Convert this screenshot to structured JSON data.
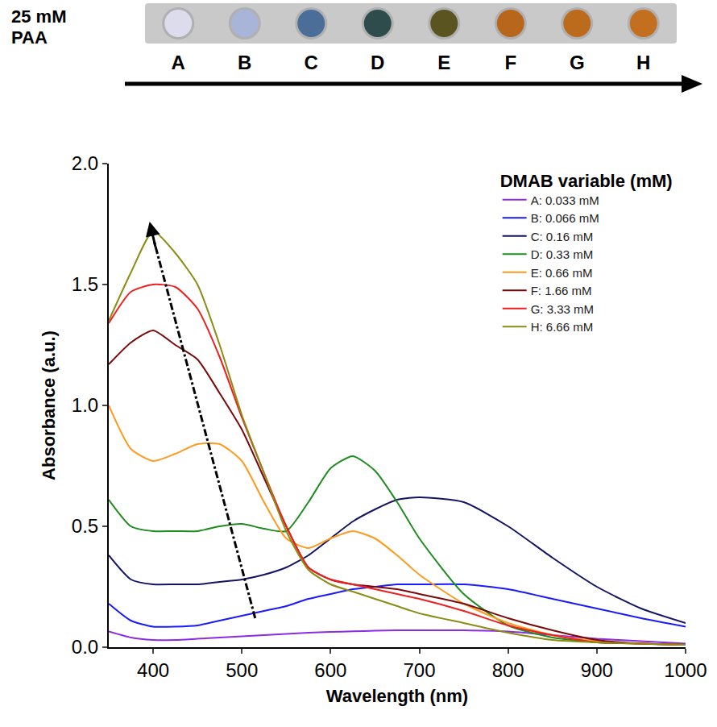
{
  "header": {
    "label": "25 mM PAA",
    "wells": [
      "A",
      "B",
      "C",
      "D",
      "E",
      "F",
      "G",
      "H"
    ]
  },
  "chart_data": {
    "type": "line",
    "x_label": "Wavelength (nm)",
    "y_label": "Absorbance (a.u.)",
    "legend_title": "DMAB variable (mM)",
    "legend": "upper right",
    "grid": false,
    "xlim": [
      350,
      1000
    ],
    "ylim": [
      0,
      2
    ],
    "xticks": [
      400,
      500,
      600,
      700,
      800,
      900,
      1000
    ],
    "yticks": [
      {
        "value": 0,
        "label": "0.0"
      },
      {
        "value": 0.5,
        "label": "0.5"
      },
      {
        "value": 1,
        "label": "1.0"
      },
      {
        "value": 1.5,
        "label": "1.5"
      },
      {
        "value": 2,
        "label": "2.0"
      }
    ],
    "x": [
      350,
      375,
      400,
      425,
      450,
      475,
      500,
      525,
      550,
      575,
      600,
      625,
      650,
      675,
      700,
      750,
      800,
      850,
      900,
      950,
      1000
    ],
    "series": [
      {
        "name": "A: 0.033 mM",
        "color": "#8b2be2",
        "values": [
          0.065,
          0.04,
          0.03,
          0.03,
          0.035,
          0.04,
          0.045,
          0.05,
          0.055,
          0.06,
          0.063,
          0.066,
          0.068,
          0.07,
          0.07,
          0.07,
          0.065,
          0.05,
          0.035,
          0.025,
          0.015
        ]
      },
      {
        "name": "B: 0.066 mM",
        "color": "#1a1aff",
        "values": [
          0.18,
          0.11,
          0.085,
          0.085,
          0.09,
          0.11,
          0.13,
          0.15,
          0.17,
          0.2,
          0.22,
          0.24,
          0.25,
          0.26,
          0.26,
          0.26,
          0.24,
          0.2,
          0.16,
          0.12,
          0.085
        ]
      },
      {
        "name": "C: 0.16 mM",
        "color": "#141464",
        "values": [
          0.38,
          0.28,
          0.26,
          0.26,
          0.26,
          0.27,
          0.28,
          0.3,
          0.33,
          0.38,
          0.45,
          0.52,
          0.57,
          0.61,
          0.62,
          0.6,
          0.5,
          0.37,
          0.25,
          0.16,
          0.1
        ]
      },
      {
        "name": "D: 0.33 mM",
        "color": "#1e8c1e",
        "values": [
          0.61,
          0.5,
          0.48,
          0.48,
          0.48,
          0.5,
          0.51,
          0.49,
          0.48,
          0.6,
          0.74,
          0.79,
          0.73,
          0.6,
          0.45,
          0.22,
          0.09,
          0.04,
          0.02,
          0.015,
          0.01
        ]
      },
      {
        "name": "E: 0.66 mM",
        "color": "#ff9a1e",
        "values": [
          1.0,
          0.82,
          0.77,
          0.8,
          0.84,
          0.84,
          0.77,
          0.6,
          0.45,
          0.41,
          0.45,
          0.48,
          0.45,
          0.38,
          0.3,
          0.18,
          0.1,
          0.05,
          0.025,
          0.015,
          0.01
        ]
      },
      {
        "name": "F: 1.66 mM",
        "color": "#7a0a0a",
        "values": [
          1.17,
          1.26,
          1.31,
          1.25,
          1.19,
          1.05,
          0.9,
          0.7,
          0.5,
          0.33,
          0.28,
          0.26,
          0.25,
          0.24,
          0.22,
          0.18,
          0.12,
          0.07,
          0.03,
          0.015,
          0.01
        ]
      },
      {
        "name": "G: 3.33 mM",
        "color": "#f01e1e",
        "values": [
          1.34,
          1.47,
          1.5,
          1.49,
          1.4,
          1.2,
          0.95,
          0.72,
          0.5,
          0.33,
          0.28,
          0.26,
          0.24,
          0.22,
          0.2,
          0.15,
          0.09,
          0.05,
          0.02,
          0.015,
          0.01
        ]
      },
      {
        "name": "H: 6.66 mM",
        "color": "#8c8c14",
        "values": [
          1.35,
          1.55,
          1.72,
          1.63,
          1.5,
          1.25,
          0.96,
          0.72,
          0.48,
          0.32,
          0.26,
          0.23,
          0.2,
          0.17,
          0.14,
          0.1,
          0.06,
          0.03,
          0.02,
          0.015,
          0.01
        ]
      }
    ]
  }
}
